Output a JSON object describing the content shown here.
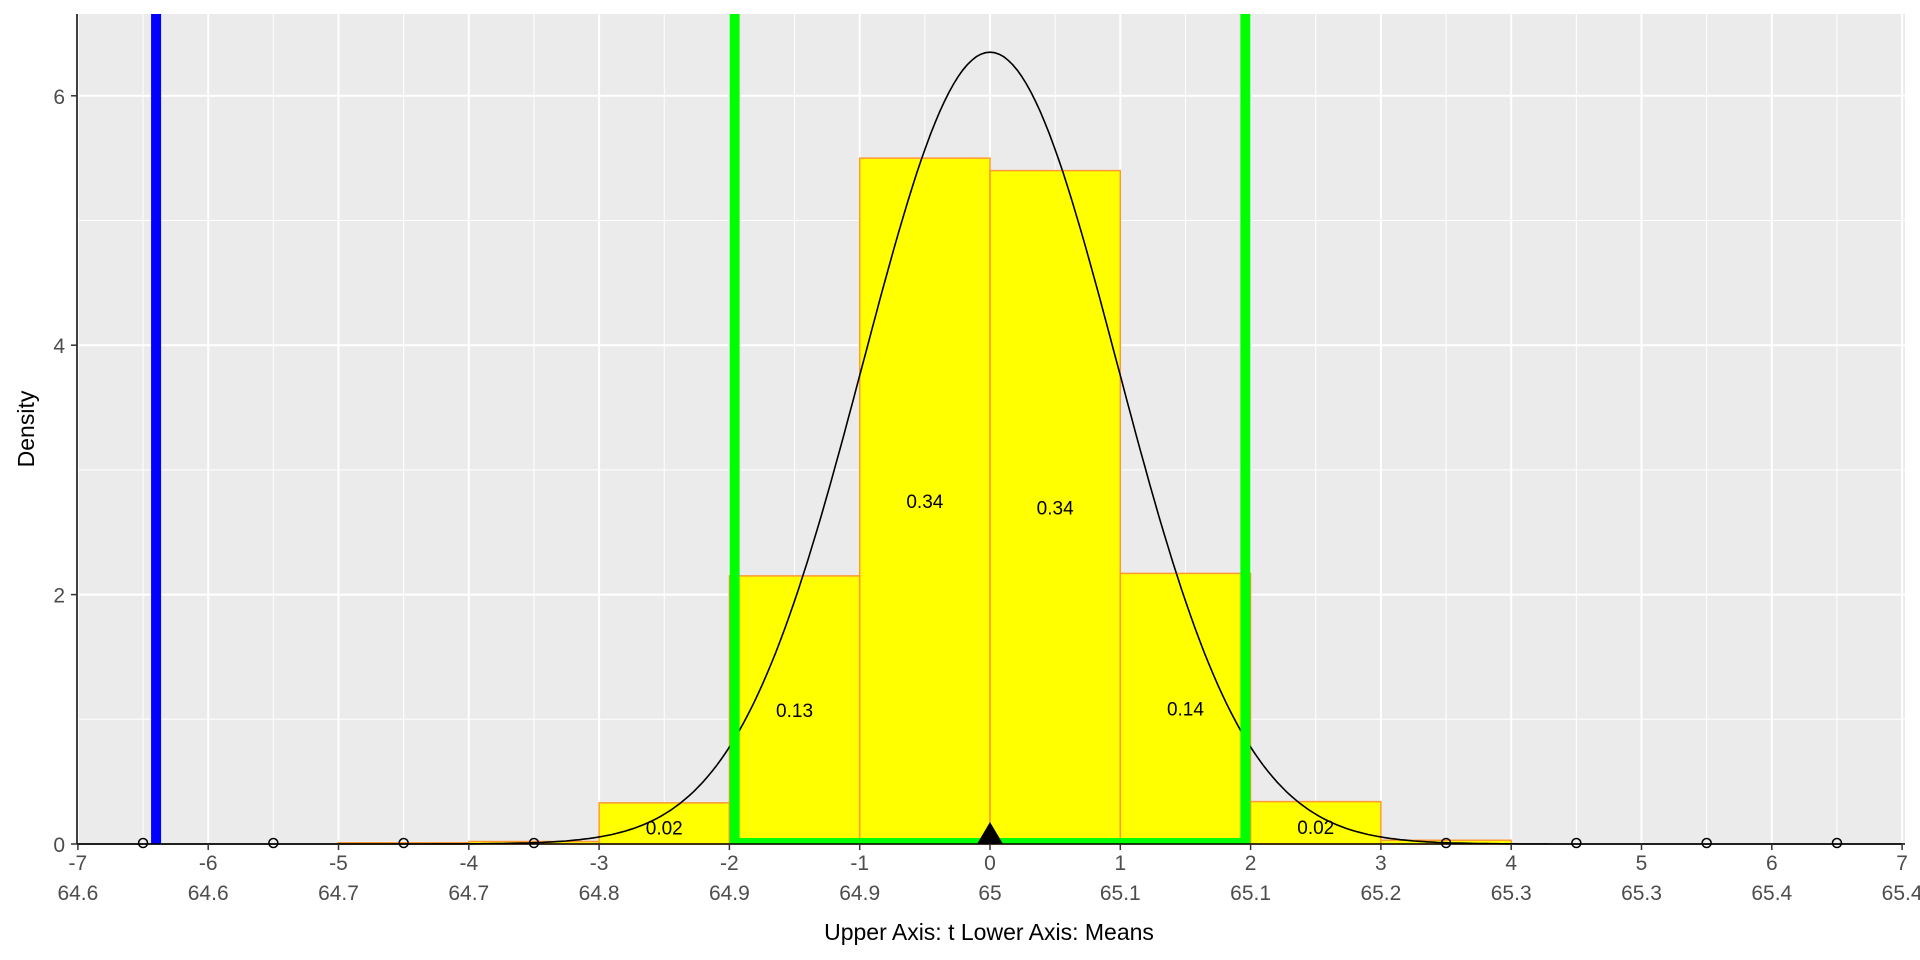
{
  "chart_data": {
    "type": "bar",
    "title": "",
    "xlabel": "Upper Axis: t Lower Axis:  Means",
    "ylabel": "Density",
    "xlim": [
      -7,
      7
    ],
    "ylim": [
      0,
      6.65
    ],
    "grid": true,
    "x_ticks": [
      -7,
      -6,
      -5,
      -4,
      -3,
      -2,
      -1,
      0,
      1,
      2,
      3,
      4,
      5,
      6,
      7
    ],
    "x_tick_labels_upper": [
      "-7",
      "-6",
      "-5",
      "-4",
      "-3",
      "-2",
      "-1",
      "0",
      "1",
      "2",
      "3",
      "4",
      "5",
      "6",
      "7"
    ],
    "x_tick_labels_lower": [
      "64.6",
      "64.6",
      "64.7",
      "64.7",
      "64.8",
      "64.9",
      "64.9",
      "65",
      "65.1",
      "65.1",
      "65.2",
      "65.3",
      "65.3",
      "65.4",
      "65.4"
    ],
    "y_ticks": [
      0,
      2,
      4,
      6
    ],
    "y_tick_labels": [
      "0",
      "2",
      "4",
      "6"
    ],
    "histogram": {
      "bins": [
        {
          "x0": -5,
          "x1": -4,
          "density": 0.01,
          "label": ""
        },
        {
          "x0": -4,
          "x1": -3,
          "density": 0.02,
          "label": ""
        },
        {
          "x0": -3,
          "x1": -2,
          "density": 0.33,
          "label": "0.02"
        },
        {
          "x0": -2,
          "x1": -1,
          "density": 2.15,
          "label": "0.13"
        },
        {
          "x0": -1,
          "x1": 0,
          "density": 5.5,
          "label": "0.34"
        },
        {
          "x0": 0,
          "x1": 1,
          "density": 5.4,
          "label": "0.34"
        },
        {
          "x0": 1,
          "x1": 2,
          "density": 2.17,
          "label": "0.14"
        },
        {
          "x0": 2,
          "x1": 3,
          "density": 0.34,
          "label": "0.02"
        },
        {
          "x0": 3,
          "x1": 4,
          "density": 0.03,
          "label": ""
        }
      ],
      "fill_color": "#ffff00",
      "border_color": "#ff9933"
    },
    "density_curve": {
      "mean": 0,
      "sd": 0.976,
      "peak": 6.35,
      "color": "#000000"
    },
    "critical_lines": {
      "values": [
        -1.96,
        1.96
      ],
      "color": "#00ff00"
    },
    "observed_line": {
      "value": -6.4,
      "color": "#0000ff"
    },
    "mean_marker": {
      "value": 0,
      "color": "#000000"
    },
    "reference_points": [
      -6.5,
      -5.5,
      -4.5,
      -3.5,
      3.5,
      4.5,
      5.5,
      6.5
    ],
    "colors": {
      "panel_bg": "#ebebeb",
      "grid": "#ffffff"
    }
  }
}
